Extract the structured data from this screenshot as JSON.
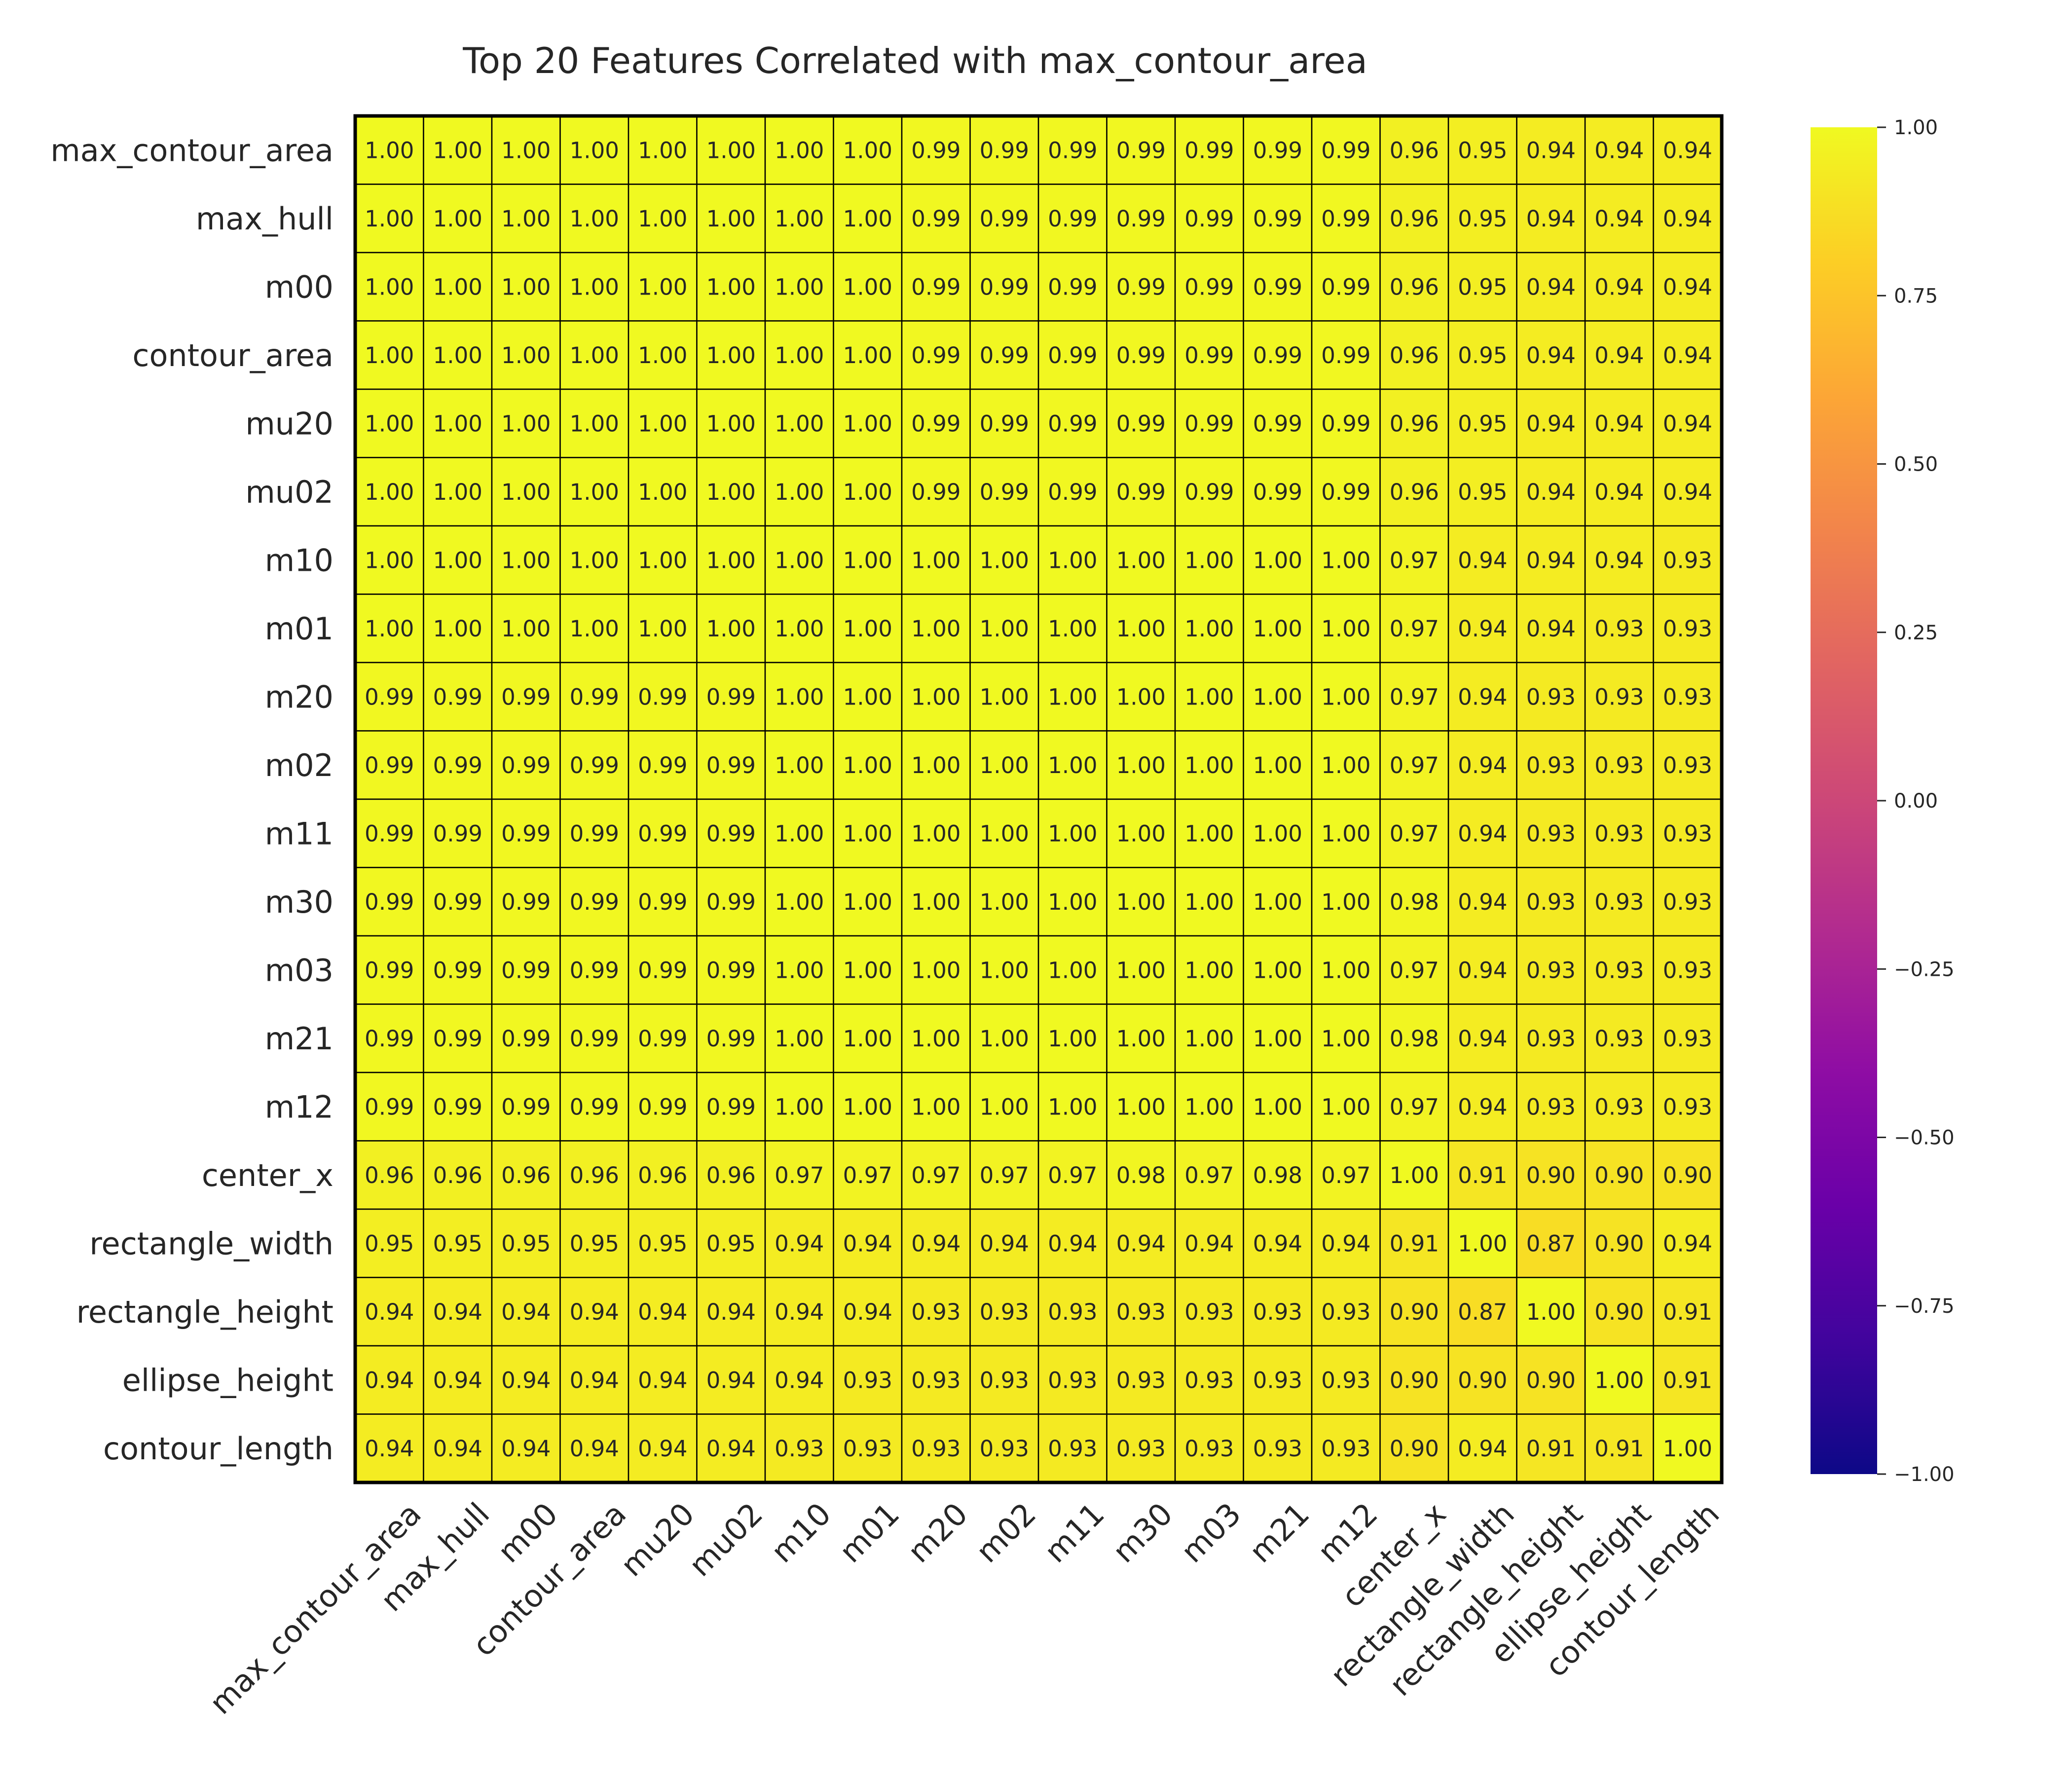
{
  "chart_data": {
    "type": "heatmap",
    "title": "Top 20 Features Correlated with max_contour_area",
    "xlabel": "",
    "ylabel": "",
    "colormap": "plasma",
    "colors": {
      "cell_border": "#000000",
      "text": "#262626"
    },
    "vmin": -1.0,
    "vmax": 1.0,
    "colorbar_ticks": [
      "1.00",
      "0.75",
      "0.50",
      "0.25",
      "0.00",
      "−0.25",
      "−0.50",
      "−0.75",
      "−1.00"
    ],
    "colorbar_tick_values": [
      1.0,
      0.75,
      0.5,
      0.25,
      0.0,
      -0.25,
      -0.5,
      -0.75,
      -1.0
    ],
    "labels": [
      "max_contour_area",
      "max_hull",
      "m00",
      "contour_area",
      "mu20",
      "mu02",
      "m10",
      "m01",
      "m20",
      "m02",
      "m11",
      "m30",
      "m03",
      "m21",
      "m12",
      "center_x",
      "rectangle_width",
      "rectangle_height",
      "ellipse_height",
      "contour_length"
    ],
    "matrix": [
      [
        "1.00",
        "1.00",
        "1.00",
        "1.00",
        "1.00",
        "1.00",
        "1.00",
        "1.00",
        "0.99",
        "0.99",
        "0.99",
        "0.99",
        "0.99",
        "0.99",
        "0.99",
        "0.96",
        "0.95",
        "0.94",
        "0.94",
        "0.94"
      ],
      [
        "1.00",
        "1.00",
        "1.00",
        "1.00",
        "1.00",
        "1.00",
        "1.00",
        "1.00",
        "0.99",
        "0.99",
        "0.99",
        "0.99",
        "0.99",
        "0.99",
        "0.99",
        "0.96",
        "0.95",
        "0.94",
        "0.94",
        "0.94"
      ],
      [
        "1.00",
        "1.00",
        "1.00",
        "1.00",
        "1.00",
        "1.00",
        "1.00",
        "1.00",
        "0.99",
        "0.99",
        "0.99",
        "0.99",
        "0.99",
        "0.99",
        "0.99",
        "0.96",
        "0.95",
        "0.94",
        "0.94",
        "0.94"
      ],
      [
        "1.00",
        "1.00",
        "1.00",
        "1.00",
        "1.00",
        "1.00",
        "1.00",
        "1.00",
        "0.99",
        "0.99",
        "0.99",
        "0.99",
        "0.99",
        "0.99",
        "0.99",
        "0.96",
        "0.95",
        "0.94",
        "0.94",
        "0.94"
      ],
      [
        "1.00",
        "1.00",
        "1.00",
        "1.00",
        "1.00",
        "1.00",
        "1.00",
        "1.00",
        "0.99",
        "0.99",
        "0.99",
        "0.99",
        "0.99",
        "0.99",
        "0.99",
        "0.96",
        "0.95",
        "0.94",
        "0.94",
        "0.94"
      ],
      [
        "1.00",
        "1.00",
        "1.00",
        "1.00",
        "1.00",
        "1.00",
        "1.00",
        "1.00",
        "0.99",
        "0.99",
        "0.99",
        "0.99",
        "0.99",
        "0.99",
        "0.99",
        "0.96",
        "0.95",
        "0.94",
        "0.94",
        "0.94"
      ],
      [
        "1.00",
        "1.00",
        "1.00",
        "1.00",
        "1.00",
        "1.00",
        "1.00",
        "1.00",
        "1.00",
        "1.00",
        "1.00",
        "1.00",
        "1.00",
        "1.00",
        "1.00",
        "0.97",
        "0.94",
        "0.94",
        "0.94",
        "0.93"
      ],
      [
        "1.00",
        "1.00",
        "1.00",
        "1.00",
        "1.00",
        "1.00",
        "1.00",
        "1.00",
        "1.00",
        "1.00",
        "1.00",
        "1.00",
        "1.00",
        "1.00",
        "1.00",
        "0.97",
        "0.94",
        "0.94",
        "0.93",
        "0.93"
      ],
      [
        "0.99",
        "0.99",
        "0.99",
        "0.99",
        "0.99",
        "0.99",
        "1.00",
        "1.00",
        "1.00",
        "1.00",
        "1.00",
        "1.00",
        "1.00",
        "1.00",
        "1.00",
        "0.97",
        "0.94",
        "0.93",
        "0.93",
        "0.93"
      ],
      [
        "0.99",
        "0.99",
        "0.99",
        "0.99",
        "0.99",
        "0.99",
        "1.00",
        "1.00",
        "1.00",
        "1.00",
        "1.00",
        "1.00",
        "1.00",
        "1.00",
        "1.00",
        "0.97",
        "0.94",
        "0.93",
        "0.93",
        "0.93"
      ],
      [
        "0.99",
        "0.99",
        "0.99",
        "0.99",
        "0.99",
        "0.99",
        "1.00",
        "1.00",
        "1.00",
        "1.00",
        "1.00",
        "1.00",
        "1.00",
        "1.00",
        "1.00",
        "0.97",
        "0.94",
        "0.93",
        "0.93",
        "0.93"
      ],
      [
        "0.99",
        "0.99",
        "0.99",
        "0.99",
        "0.99",
        "0.99",
        "1.00",
        "1.00",
        "1.00",
        "1.00",
        "1.00",
        "1.00",
        "1.00",
        "1.00",
        "1.00",
        "0.98",
        "0.94",
        "0.93",
        "0.93",
        "0.93"
      ],
      [
        "0.99",
        "0.99",
        "0.99",
        "0.99",
        "0.99",
        "0.99",
        "1.00",
        "1.00",
        "1.00",
        "1.00",
        "1.00",
        "1.00",
        "1.00",
        "1.00",
        "1.00",
        "0.97",
        "0.94",
        "0.93",
        "0.93",
        "0.93"
      ],
      [
        "0.99",
        "0.99",
        "0.99",
        "0.99",
        "0.99",
        "0.99",
        "1.00",
        "1.00",
        "1.00",
        "1.00",
        "1.00",
        "1.00",
        "1.00",
        "1.00",
        "1.00",
        "0.98",
        "0.94",
        "0.93",
        "0.93",
        "0.93"
      ],
      [
        "0.99",
        "0.99",
        "0.99",
        "0.99",
        "0.99",
        "0.99",
        "1.00",
        "1.00",
        "1.00",
        "1.00",
        "1.00",
        "1.00",
        "1.00",
        "1.00",
        "1.00",
        "0.97",
        "0.94",
        "0.93",
        "0.93",
        "0.93"
      ],
      [
        "0.96",
        "0.96",
        "0.96",
        "0.96",
        "0.96",
        "0.96",
        "0.97",
        "0.97",
        "0.97",
        "0.97",
        "0.97",
        "0.98",
        "0.97",
        "0.98",
        "0.97",
        "1.00",
        "0.91",
        "0.90",
        "0.90",
        "0.90"
      ],
      [
        "0.95",
        "0.95",
        "0.95",
        "0.95",
        "0.95",
        "0.95",
        "0.94",
        "0.94",
        "0.94",
        "0.94",
        "0.94",
        "0.94",
        "0.94",
        "0.94",
        "0.94",
        "0.91",
        "1.00",
        "0.87",
        "0.90",
        "0.94"
      ],
      [
        "0.94",
        "0.94",
        "0.94",
        "0.94",
        "0.94",
        "0.94",
        "0.94",
        "0.94",
        "0.93",
        "0.93",
        "0.93",
        "0.93",
        "0.93",
        "0.93",
        "0.93",
        "0.90",
        "0.87",
        "1.00",
        "0.90",
        "0.91"
      ],
      [
        "0.94",
        "0.94",
        "0.94",
        "0.94",
        "0.94",
        "0.94",
        "0.94",
        "0.93",
        "0.93",
        "0.93",
        "0.93",
        "0.93",
        "0.93",
        "0.93",
        "0.93",
        "0.90",
        "0.90",
        "0.90",
        "1.00",
        "0.91"
      ],
      [
        "0.94",
        "0.94",
        "0.94",
        "0.94",
        "0.94",
        "0.94",
        "0.93",
        "0.93",
        "0.93",
        "0.93",
        "0.93",
        "0.93",
        "0.93",
        "0.93",
        "0.93",
        "0.90",
        "0.94",
        "0.91",
        "0.91",
        "1.00"
      ]
    ]
  }
}
